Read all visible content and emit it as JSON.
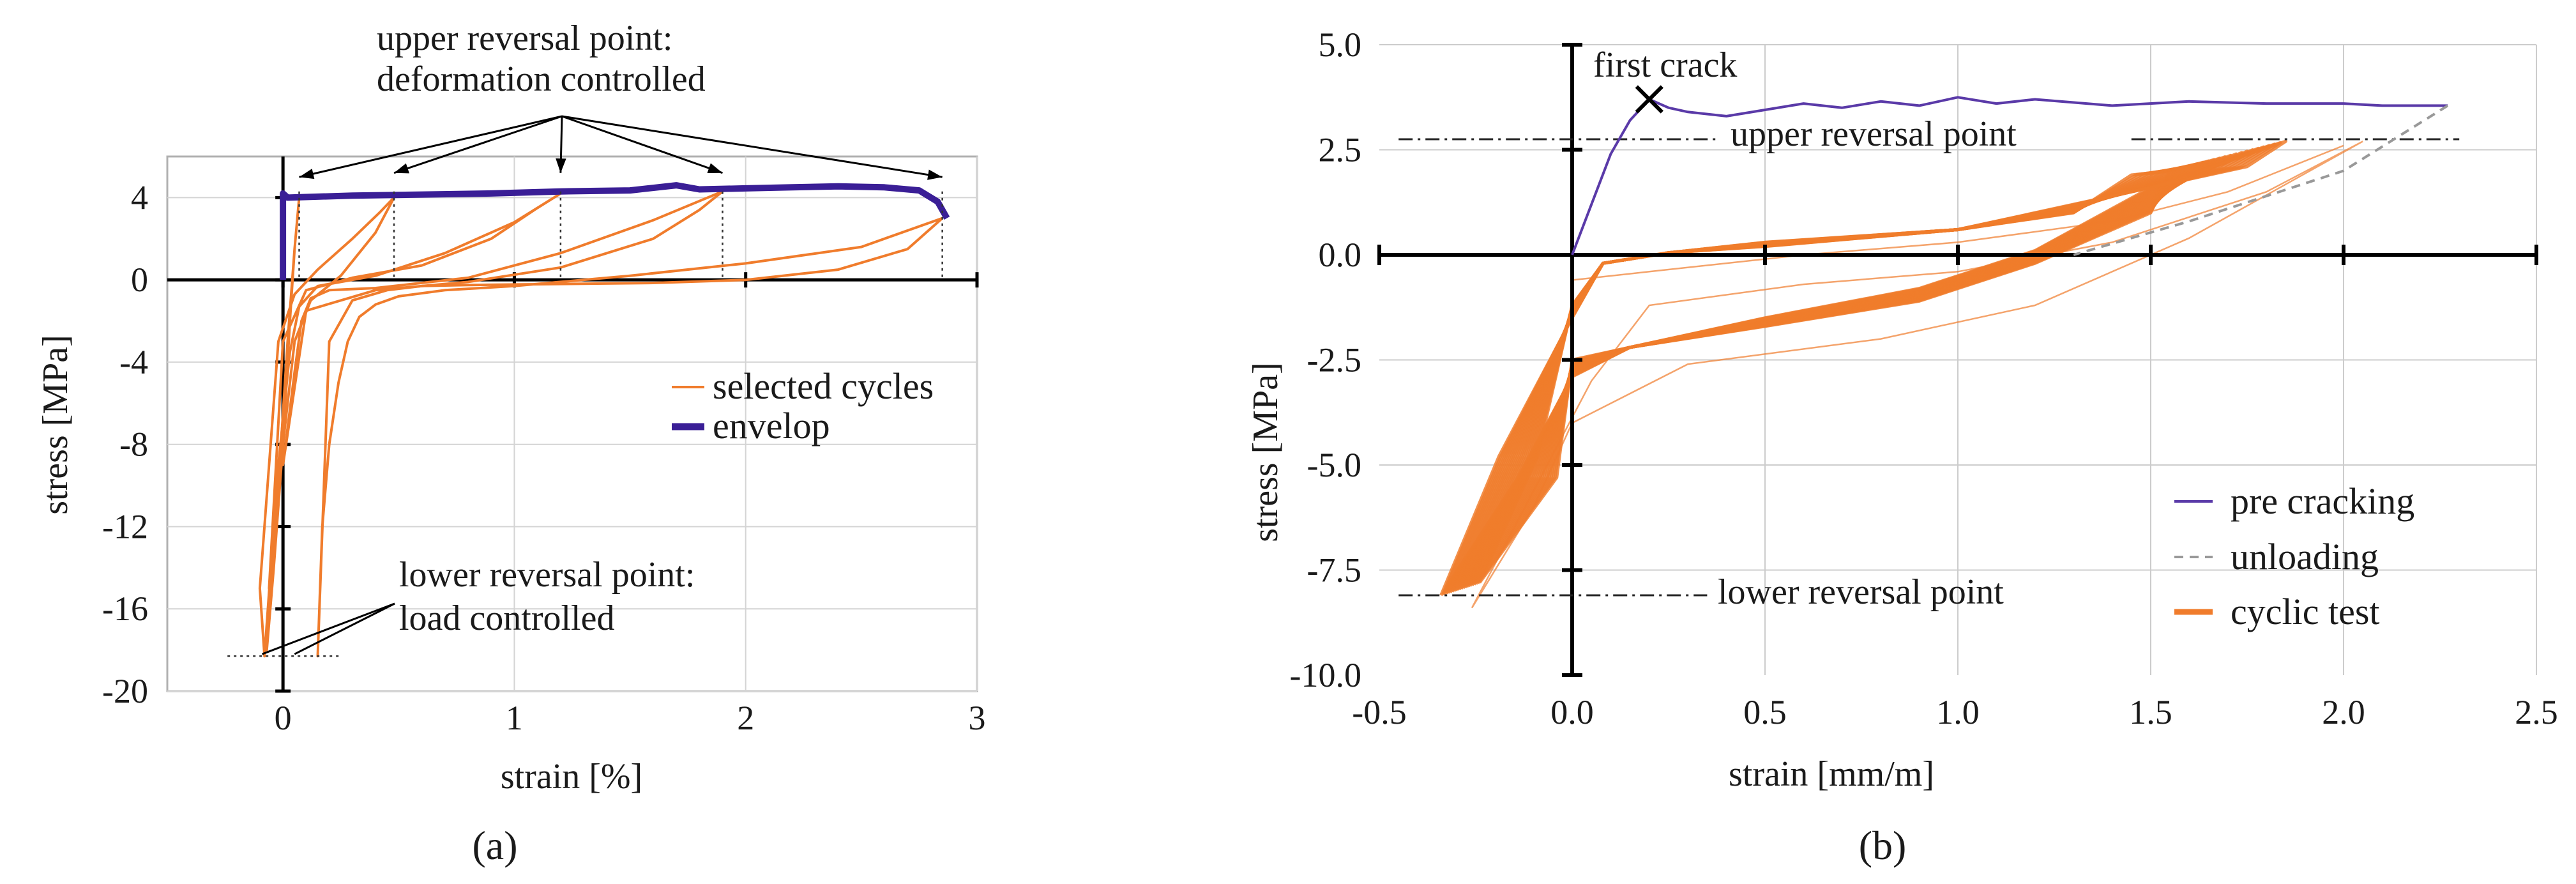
{
  "chart_data": [
    {
      "panel_label": "(a)",
      "type": "line",
      "xlabel": "strain [%]",
      "ylabel": "stress [MPa]",
      "xlim": [
        -0.5,
        3
      ],
      "ylim": [
        -20,
        6
      ],
      "xticks": [
        0,
        1,
        2,
        3
      ],
      "xtick_labels": [
        "0",
        "1",
        "2",
        "3"
      ],
      "yticks": [
        4,
        0,
        -4,
        -8,
        -12,
        -16,
        -20
      ],
      "ytick_labels": [
        "4",
        "0",
        "-4",
        "-8",
        "-12",
        "-16",
        "-20"
      ],
      "annotations": {
        "upper": [
          "upper reversal point:",
          "deformation controlled"
        ],
        "lower": [
          "lower reversal point:",
          "load controlled"
        ]
      },
      "upper_reversal_strains": [
        0.07,
        0.48,
        1.2,
        1.9,
        2.85
      ],
      "lower_reversal_stress": -18.3,
      "legend": [
        {
          "label": "selected cycles",
          "color": "#f07c2c"
        },
        {
          "label": "envelop",
          "color": "#3a1e96"
        }
      ],
      "series": [
        {
          "name": "envelop",
          "color": "#3a1e96",
          "x": [
            0.0,
            0.0,
            0.02,
            0.3,
            0.6,
            0.9,
            1.2,
            1.5,
            1.7,
            1.8,
            2.0,
            2.2,
            2.4,
            2.6,
            2.75,
            2.83,
            2.87
          ],
          "y": [
            0.0,
            4.2,
            4.0,
            4.1,
            4.15,
            4.2,
            4.3,
            4.35,
            4.6,
            4.4,
            4.45,
            4.5,
            4.55,
            4.5,
            4.35,
            3.8,
            3.0
          ]
        },
        {
          "name": "selected cycles",
          "color": "#f07c2c",
          "loops": [
            {
              "x": [
                0.07,
                0.05,
                0.02,
                -0.02,
                -0.05,
                -0.07,
                -0.04,
                0.0,
                0.03,
                0.05,
                0.07
              ],
              "y": [
                4.0,
                1.5,
                -3.0,
                -10.0,
                -15.0,
                -18.0,
                -14.0,
                -8.0,
                -2.0,
                1.5,
                4.0
              ]
            },
            {
              "x": [
                0.48,
                0.4,
                0.25,
                0.12,
                0.05,
                0.02,
                -0.04,
                -0.08,
                -0.1,
                -0.06,
                -0.02,
                0.05,
                0.15,
                0.3,
                0.42,
                0.48
              ],
              "y": [
                4.0,
                2.3,
                0.2,
                -1.0,
                -3.0,
                -6.0,
                -12.0,
                -18.3,
                -15.0,
                -9.0,
                -3.0,
                -0.7,
                0.5,
                2.0,
                3.3,
                4.0
              ]
            },
            {
              "x": [
                1.2,
                1.0,
                0.7,
                0.4,
                0.15,
                0.07,
                0.03,
                -0.02,
                -0.06,
                0.0,
                0.1,
                0.3,
                0.6,
                0.9,
                1.1,
                1.2
              ],
              "y": [
                4.2,
                2.8,
                1.3,
                0.2,
                -0.3,
                -1.3,
                -3.5,
                -9.0,
                -15.0,
                -3.0,
                -0.5,
                0.1,
                0.7,
                2.0,
                3.5,
                4.2
              ]
            },
            {
              "x": [
                1.9,
                1.6,
                1.2,
                0.8,
                0.4,
                0.2,
                0.12,
                0.08,
                0.05,
                0.0,
                0.1,
                0.4,
                0.8,
                1.2,
                1.6,
                1.8,
                1.9
              ],
              "y": [
                4.3,
                2.9,
                1.3,
                0.1,
                -0.4,
                -0.5,
                -0.9,
                -2.0,
                -4.5,
                -9.0,
                -1.5,
                -0.5,
                -0.1,
                0.6,
                2.0,
                3.4,
                4.3
              ]
            },
            {
              "x": [
                2.85,
                2.5,
                2.0,
                1.5,
                1.0,
                0.7,
                0.5,
                0.4,
                0.33,
                0.28,
                0.24,
                0.2,
                0.17,
                0.15,
                0.2,
                0.3,
                0.45,
                0.6,
                0.8,
                1.2,
                1.6,
                2.0,
                2.4,
                2.7,
                2.85
              ],
              "y": [
                3.0,
                1.6,
                0.8,
                0.2,
                -0.3,
                -0.5,
                -0.8,
                -1.2,
                -1.8,
                -3.0,
                -5.0,
                -8.0,
                -12.0,
                -18.3,
                -3.0,
                -1.0,
                -0.5,
                -0.3,
                -0.25,
                -0.2,
                -0.15,
                0.0,
                0.5,
                1.5,
                3.0
              ]
            }
          ]
        }
      ]
    },
    {
      "panel_label": "(b)",
      "type": "line",
      "xlabel": "strain [mm/m]",
      "ylabel": "stress [MPa]",
      "xlim": [
        -0.5,
        2.5
      ],
      "ylim": [
        -10,
        5
      ],
      "xticks": [
        -0.5,
        0.0,
        0.5,
        1.0,
        1.5,
        2.0,
        2.5
      ],
      "xtick_labels": [
        "-0.5",
        "0.0",
        "0.5",
        "1.0",
        "1.5",
        "2.0",
        "2.5"
      ],
      "yticks": [
        5.0,
        2.5,
        0.0,
        -2.5,
        -5.0,
        -7.5,
        -10.0
      ],
      "ytick_labels": [
        "5.0",
        "2.5",
        "0.0",
        "-2.5",
        "-5.0",
        "-7.5",
        "-10.0"
      ],
      "annotations": {
        "first_crack": "first crack",
        "upper": "upper reversal point",
        "lower": "lower reversal point"
      },
      "first_crack_point": {
        "x": 0.2,
        "y": 3.7
      },
      "upper_reversal_stress": 2.75,
      "lower_reversal_stress": -8.1,
      "legend": [
        {
          "label": "pre cracking",
          "color": "#5a3aa8",
          "style": "solid"
        },
        {
          "label": "unloading",
          "color": "#999999",
          "style": "dashed"
        },
        {
          "label": "cyclic test",
          "color": "#f07c2c",
          "style": "solid"
        }
      ],
      "series": [
        {
          "name": "pre cracking",
          "color": "#5a3aa8",
          "x": [
            0.0,
            0.05,
            0.1,
            0.15,
            0.2,
            0.25,
            0.3,
            0.4,
            0.5,
            0.6,
            0.7,
            0.8,
            0.9,
            1.0,
            1.1,
            1.2,
            1.4,
            1.6,
            1.8,
            2.0,
            2.1,
            2.27
          ],
          "y": [
            0.0,
            1.2,
            2.4,
            3.2,
            3.7,
            3.5,
            3.4,
            3.3,
            3.45,
            3.6,
            3.5,
            3.65,
            3.55,
            3.75,
            3.6,
            3.7,
            3.55,
            3.65,
            3.6,
            3.6,
            3.55,
            3.55
          ]
        },
        {
          "name": "unloading",
          "color": "#999999",
          "x": [
            2.27,
            2.0,
            1.6,
            1.3
          ],
          "y": [
            3.55,
            2.0,
            0.8,
            0.0
          ]
        },
        {
          "name": "cyclic test",
          "color": "#f07c2c",
          "envelope_peak": {
            "x": 1.78,
            "y": 2.6
          },
          "envelope_valley": {
            "x": -0.33,
            "y": -8.0
          },
          "loop_count_approx": 40
        }
      ]
    }
  ]
}
